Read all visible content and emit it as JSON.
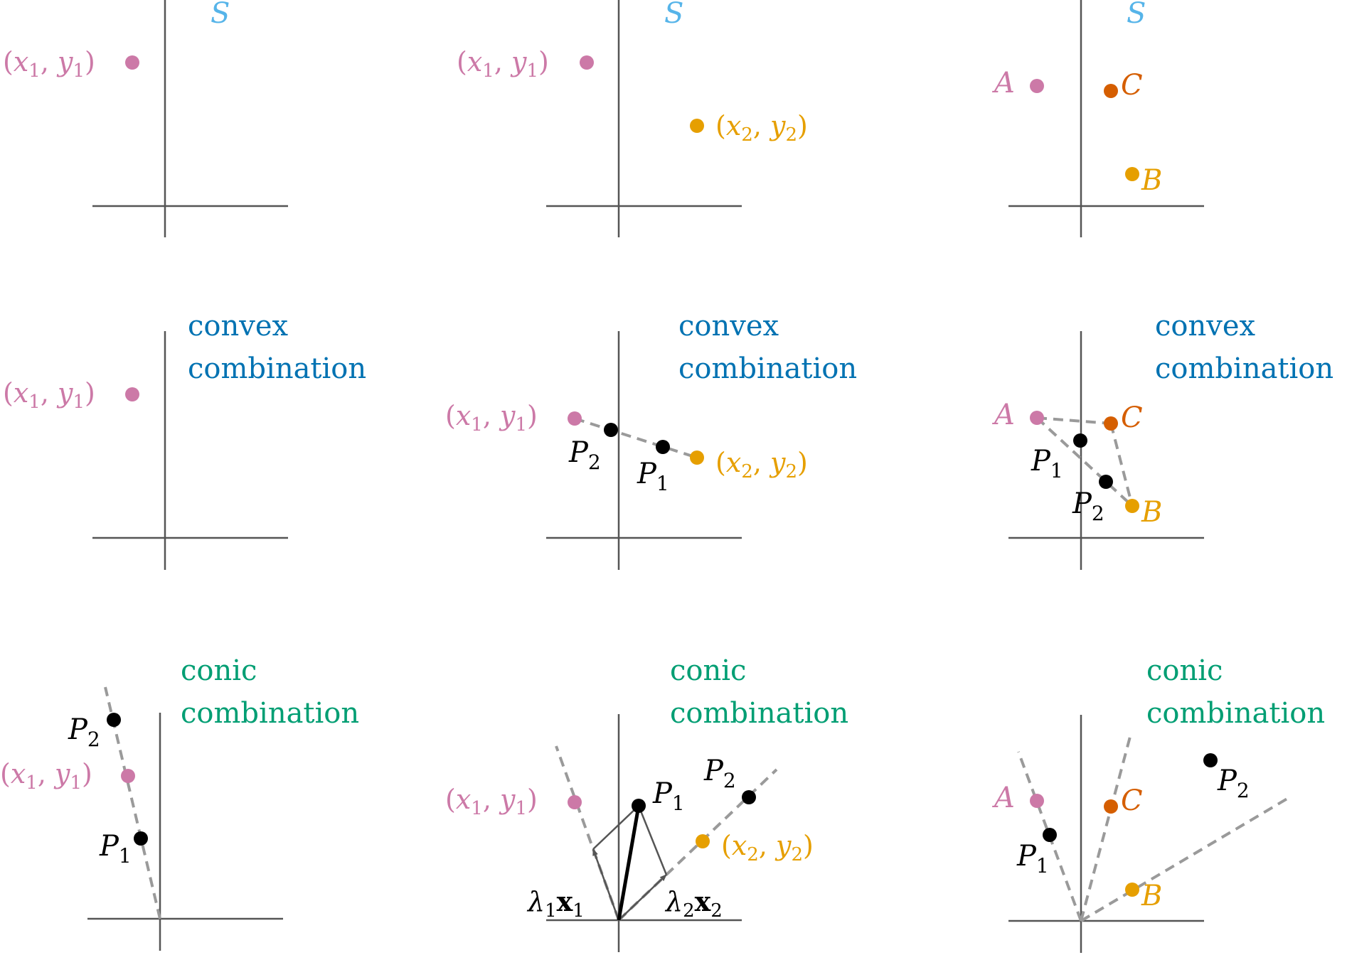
{
  "colors": {
    "axis": "#555555",
    "dash": "#9a9a9a",
    "pink": "#cc79a7",
    "orange": "#e69f00",
    "vermillion": "#d55e00",
    "skyblue": "#56b4e9",
    "blue": "#0072b2",
    "green": "#009e73",
    "black": "#000000"
  },
  "labels": {
    "set_s": "S",
    "convex_line1": "convex",
    "convex_line2": "combination",
    "conic_line1": "conic",
    "conic_line2": "combination",
    "pt_a": "A",
    "pt_b": "B",
    "pt_c": "C",
    "x1y1": {
      "open": "(",
      "x": "x",
      "s1": "1",
      "comma": ", ",
      "y": "y",
      "s2": "1",
      "close": ")"
    },
    "x2y2": {
      "open": "(",
      "x": "x",
      "s1": "2",
      "comma": ", ",
      "y": "y",
      "s2": "2",
      "close": ")"
    },
    "p1": {
      "base": "P",
      "sub": "1"
    },
    "p2": {
      "base": "P",
      "sub": "2"
    },
    "lambda1x1": {
      "lambda": "λ",
      "ls": "1",
      "x": "x",
      "xs": "1"
    },
    "lambda2x2": {
      "lambda": "λ",
      "ls": "2",
      "x": "x",
      "xs": "2"
    }
  },
  "panels": [
    {
      "id": "set-single-point",
      "row": 0,
      "col": 0,
      "heading": "set_s",
      "color": "skyblue"
    },
    {
      "id": "set-two-points",
      "row": 0,
      "col": 1,
      "heading": "set_s",
      "color": "skyblue"
    },
    {
      "id": "set-three-points",
      "row": 0,
      "col": 2,
      "heading": "set_s",
      "color": "skyblue"
    },
    {
      "id": "convex-single-point",
      "row": 1,
      "col": 0,
      "heading": "convex",
      "color": "blue"
    },
    {
      "id": "convex-two-points",
      "row": 1,
      "col": 1,
      "heading": "convex",
      "color": "blue"
    },
    {
      "id": "convex-three-points",
      "row": 1,
      "col": 2,
      "heading": "convex",
      "color": "blue"
    },
    {
      "id": "conic-single-point",
      "row": 2,
      "col": 0,
      "heading": "conic",
      "color": "green"
    },
    {
      "id": "conic-two-points",
      "row": 2,
      "col": 1,
      "heading": "conic",
      "color": "green"
    },
    {
      "id": "conic-three-points",
      "row": 2,
      "col": 2,
      "heading": "conic",
      "color": "green"
    }
  ]
}
